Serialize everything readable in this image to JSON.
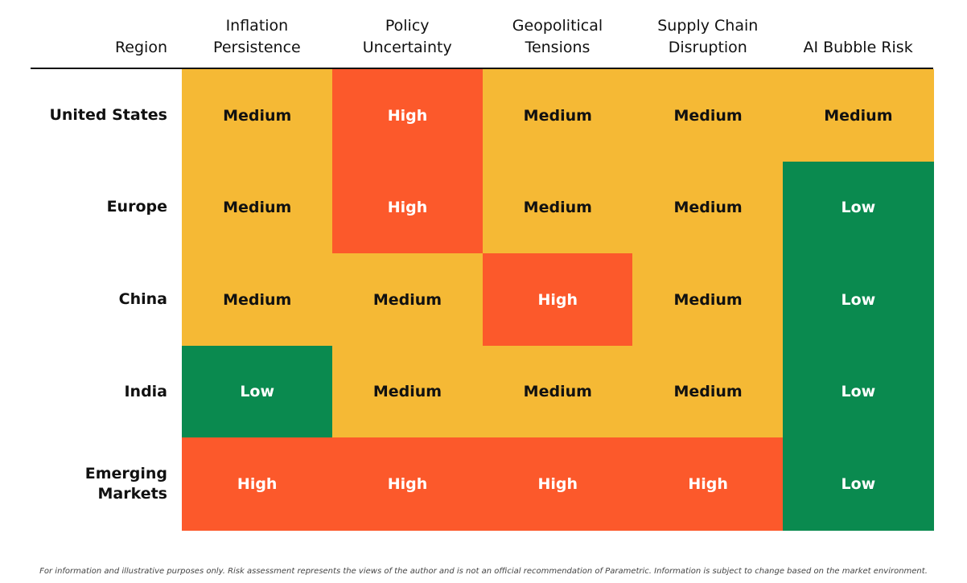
{
  "chart_data": {
    "type": "heatmap",
    "region_header": "Region",
    "columns": [
      "Inflation\nPersistence",
      "Policy\nUncertainty",
      "Geopolitical\nTensions",
      "Supply Chain\nDisruption",
      "AI Bubble Risk"
    ],
    "rows": [
      "United States",
      "Europe",
      "China",
      "India",
      "Emerging\nMarkets"
    ],
    "values": [
      [
        "Medium",
        "High",
        "Medium",
        "Medium",
        "Medium"
      ],
      [
        "Medium",
        "High",
        "Medium",
        "Medium",
        "Low"
      ],
      [
        "Medium",
        "Medium",
        "High",
        "Medium",
        "Low"
      ],
      [
        "Low",
        "Medium",
        "Medium",
        "Medium",
        "Low"
      ],
      [
        "High",
        "High",
        "High",
        "High",
        "Low"
      ]
    ],
    "colors": {
      "Low": "#0a8a4f",
      "Medium": "#f5b935",
      "High": "#fc592b"
    },
    "text_colors": {
      "Low": "#ffffff",
      "Medium": "#111111",
      "High": "#ffffff"
    }
  },
  "footnote": "For information and illustrative purposes only. Risk assessment represents the views of the author and is not an official recommendation of Parametric. Information is subject to change based on the market environment."
}
